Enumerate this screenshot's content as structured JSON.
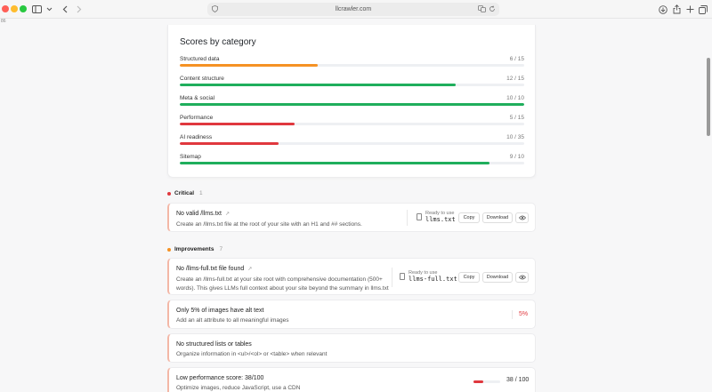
{
  "browser": {
    "url": "llcrawler.com",
    "sidenote": "86"
  },
  "scores": {
    "title": "Scores by category",
    "items": [
      {
        "label": "Structured data",
        "score": "6 / 15",
        "fraction": 0.4,
        "color": "#f59224"
      },
      {
        "label": "Content structure",
        "score": "12 / 15",
        "fraction": 0.8,
        "color": "#1fae5c"
      },
      {
        "label": "Meta & social",
        "score": "10 / 10",
        "fraction": 1.0,
        "color": "#1fae5c"
      },
      {
        "label": "Performance",
        "score": "5 / 15",
        "fraction": 0.333,
        "color": "#e0383e"
      },
      {
        "label": "AI readiness",
        "score": "10 / 35",
        "fraction": 0.286,
        "color": "#e0383e"
      },
      {
        "label": "Sitemap",
        "score": "9 / 10",
        "fraction": 0.9,
        "color": "#1fae5c"
      }
    ]
  },
  "critical": {
    "label": "Critical",
    "count": "1",
    "color": "#e0383e",
    "issue": {
      "title": "No valid /llms.txt",
      "description": "Create an /llms.txt file at the root of your site with an H1 and ## sections.",
      "ready_label": "Ready to use",
      "file_name": "llms.txt",
      "copy_label": "Copy",
      "download_label": "Download"
    }
  },
  "improvements": {
    "label": "Improvements",
    "count": "7",
    "color": "#f59224",
    "issues": [
      {
        "title": "No /llms-full.txt file found",
        "description_line1": "Create an /llms-full.txt at your site root with comprehensive documentation (500+",
        "description_line2": "words). This gives LLMs full context about your site beyond the summary in llms.txt",
        "ready_label": "Ready to use",
        "file_name": "llms-full.txt",
        "copy_label": "Copy",
        "download_label": "Download"
      },
      {
        "title": "Only 5% of images have alt text",
        "description": "Add an alt attribute to all meaningful images",
        "value": "5%"
      },
      {
        "title": "No structured lists or tables",
        "description": "Organize information in <ul>/<ol> or <table> when relevant"
      },
      {
        "title": "Low performance score: 38/100",
        "description": "Optimize images, reduce JavaScript, use a CDN",
        "value": "38 / 100",
        "fraction": 0.38
      }
    ]
  }
}
